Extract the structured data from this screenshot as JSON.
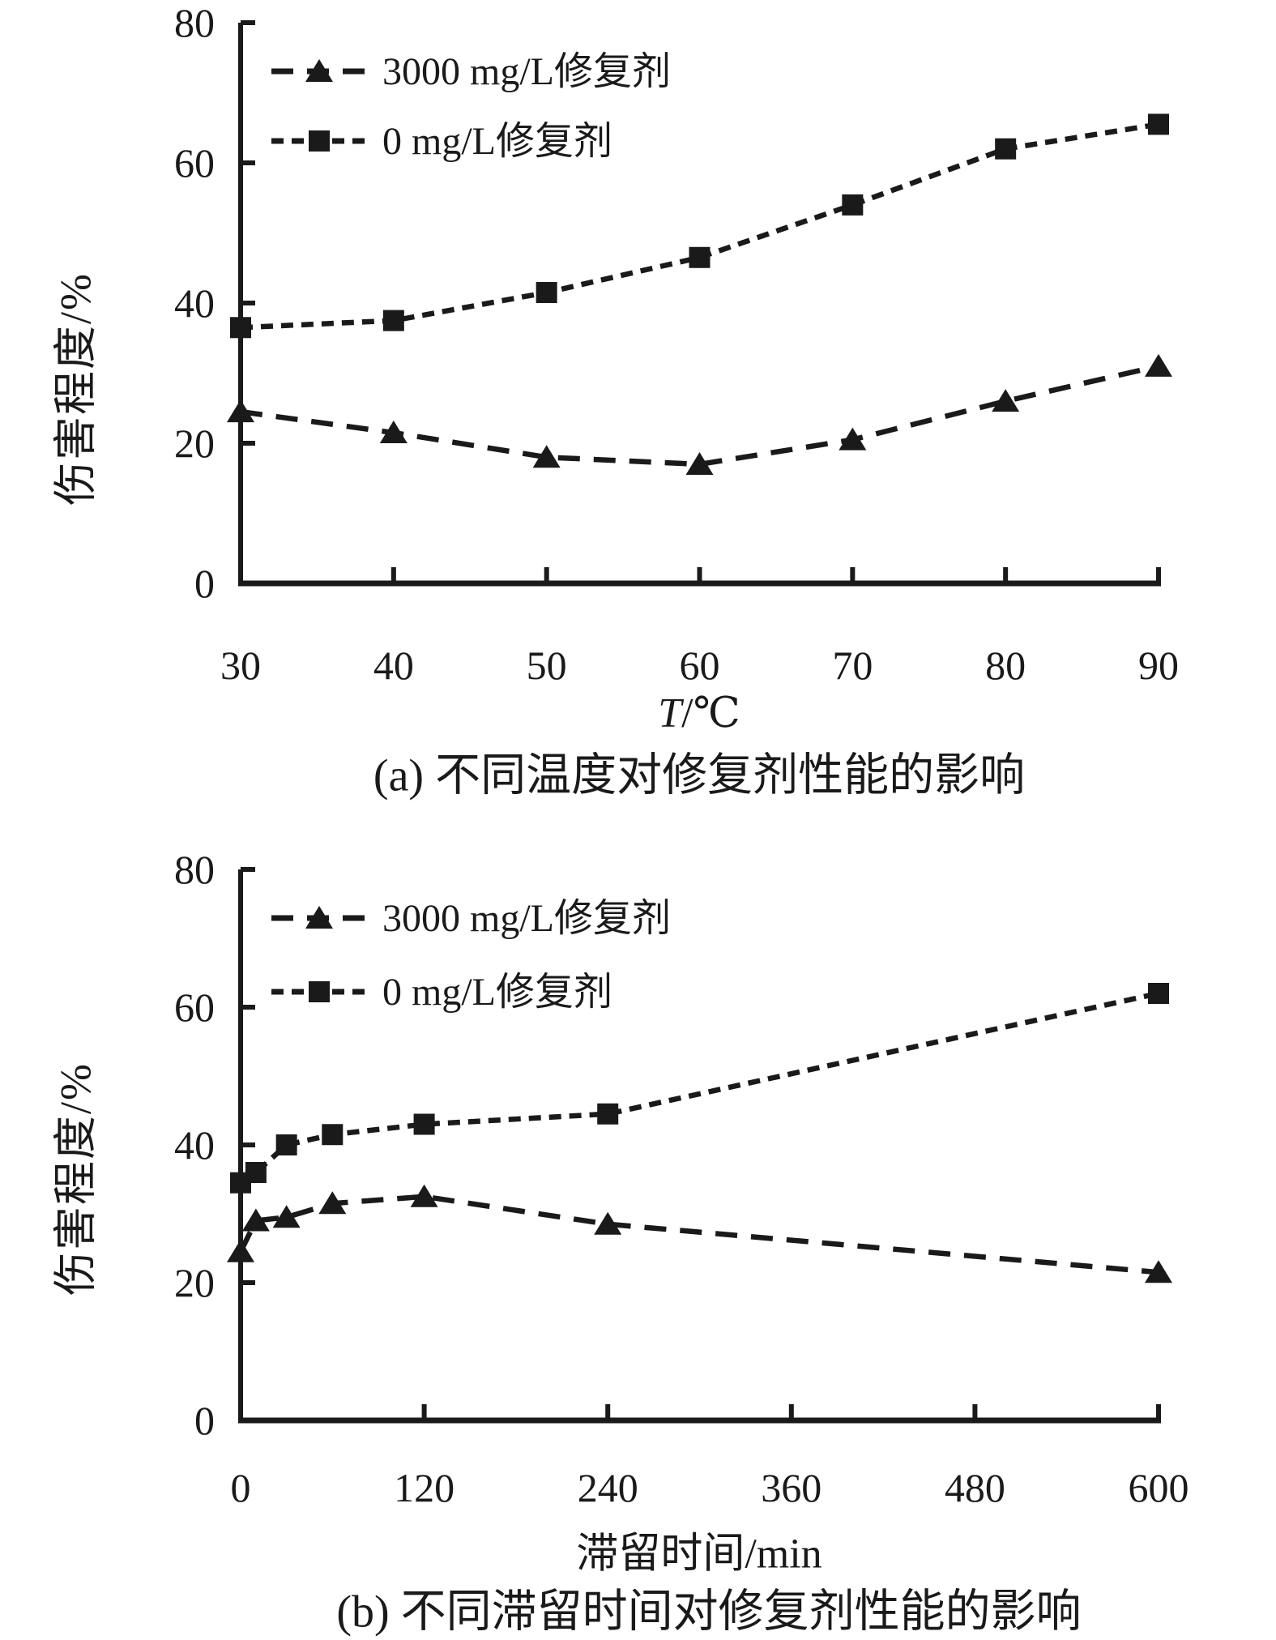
{
  "page": {
    "background": "#ffffff",
    "ink_color": "#1a1a1a"
  },
  "chart_data": [
    {
      "type": "line",
      "panel": "a",
      "title": "(a) 不同温度对修复剂性能的影响",
      "xlabel": "T/℃",
      "xlabel_parts": [
        {
          "text": "T",
          "italic": true
        },
        {
          "text": "/℃",
          "italic": false
        }
      ],
      "ylabel": "伤害程度/%",
      "x": [
        30,
        40,
        50,
        60,
        70,
        80,
        90
      ],
      "series": [
        {
          "name": "3000 mg/L修复剂",
          "marker": "triangle",
          "dash": "long",
          "values": [
            24.5,
            21.5,
            18,
            17,
            20.5,
            26,
            31
          ]
        },
        {
          "name": "0 mg/L修复剂",
          "marker": "square",
          "dash": "short",
          "values": [
            36.5,
            37.5,
            41.5,
            46.5,
            54,
            62,
            65.5
          ]
        }
      ],
      "xlim": [
        30,
        90
      ],
      "ylim": [
        0,
        80
      ],
      "xticks": [
        30,
        40,
        50,
        60,
        70,
        80,
        90
      ],
      "yticks": [
        0,
        20,
        40,
        60,
        80
      ],
      "grid": false,
      "legend_position": "top-left",
      "line_style": "dashed",
      "marker_color": "#1a1a1a"
    },
    {
      "type": "line",
      "panel": "b",
      "title": "(b) 不同滞留时间对修复剂性能的影响",
      "xlabel": "滞留时间/min",
      "ylabel": "伤害程度/%",
      "x": [
        0,
        10,
        30,
        60,
        120,
        240,
        600
      ],
      "series": [
        {
          "name": "3000 mg/L修复剂",
          "marker": "triangle",
          "dash": "long",
          "values": [
            24.5,
            29,
            29.5,
            31.5,
            32.5,
            28.5,
            21.5
          ]
        },
        {
          "name": "0 mg/L修复剂",
          "marker": "square",
          "dash": "short",
          "values": [
            34.5,
            36,
            40,
            41.5,
            43,
            44.5,
            62
          ]
        }
      ],
      "xlim": [
        0,
        600
      ],
      "ylim": [
        0,
        80
      ],
      "xticks": [
        0,
        120,
        240,
        360,
        480,
        600
      ],
      "yticks": [
        0,
        20,
        40,
        60,
        80
      ],
      "grid": false,
      "legend_position": "top-left",
      "line_style": "dashed",
      "marker_color": "#1a1a1a"
    }
  ]
}
